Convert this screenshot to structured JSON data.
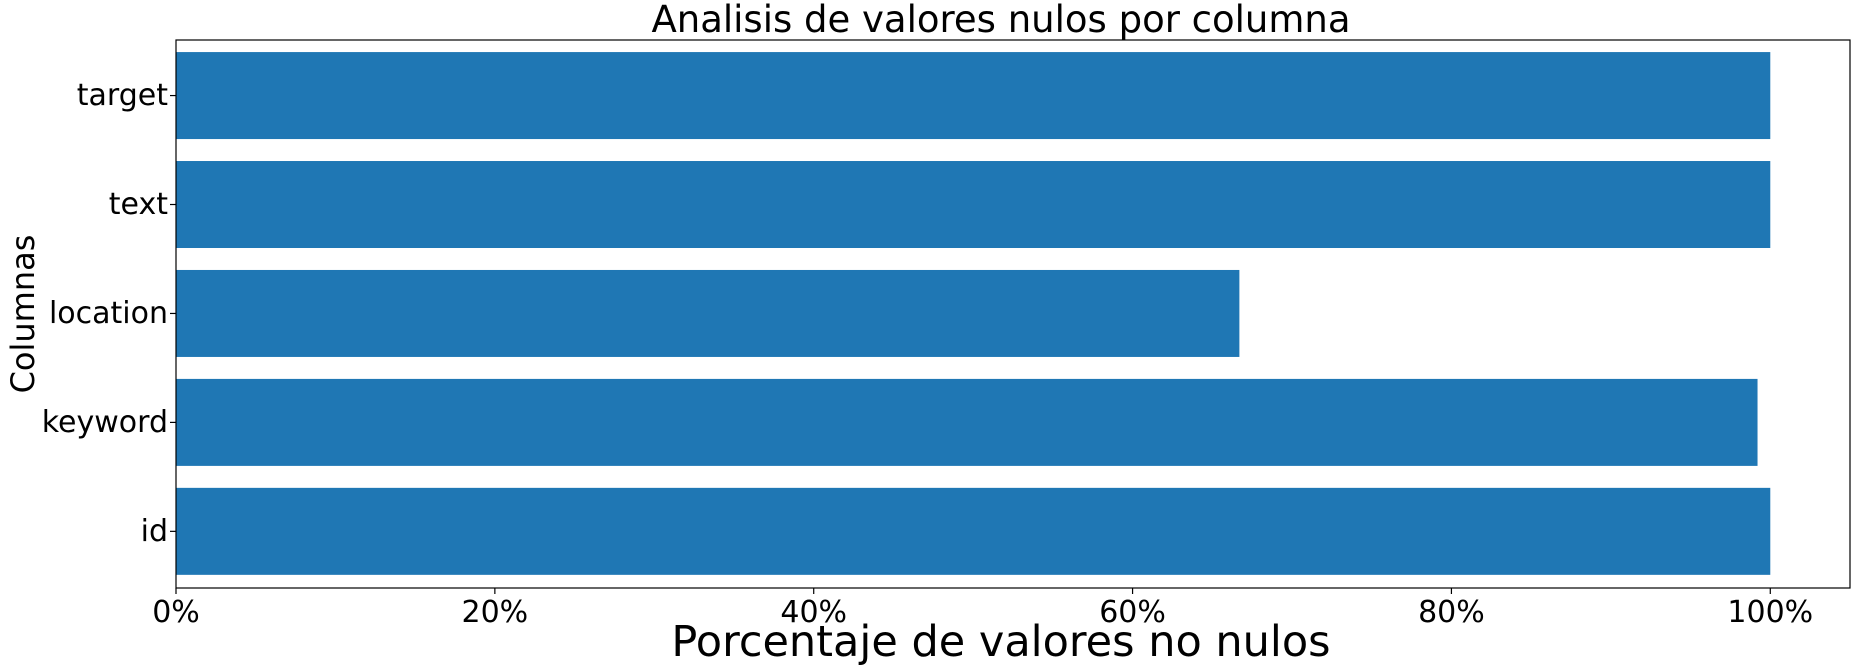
{
  "chart_data": {
    "type": "bar",
    "orientation": "horizontal",
    "title": "Analisis de valores nulos por columna",
    "xlabel": "Porcentaje de valores no nulos",
    "ylabel": "Columnas",
    "categories": [
      "id",
      "keyword",
      "location",
      "text",
      "target"
    ],
    "values": [
      100,
      99.2,
      66.7,
      100,
      100
    ],
    "xlim": [
      0,
      105
    ],
    "xticks": [
      0,
      20,
      40,
      60,
      80,
      100
    ],
    "xtick_labels": [
      "0%",
      "20%",
      "40%",
      "60%",
      "80%",
      "100%"
    ],
    "bar_color": "#1f77b4",
    "grid": false,
    "legend": "none"
  }
}
